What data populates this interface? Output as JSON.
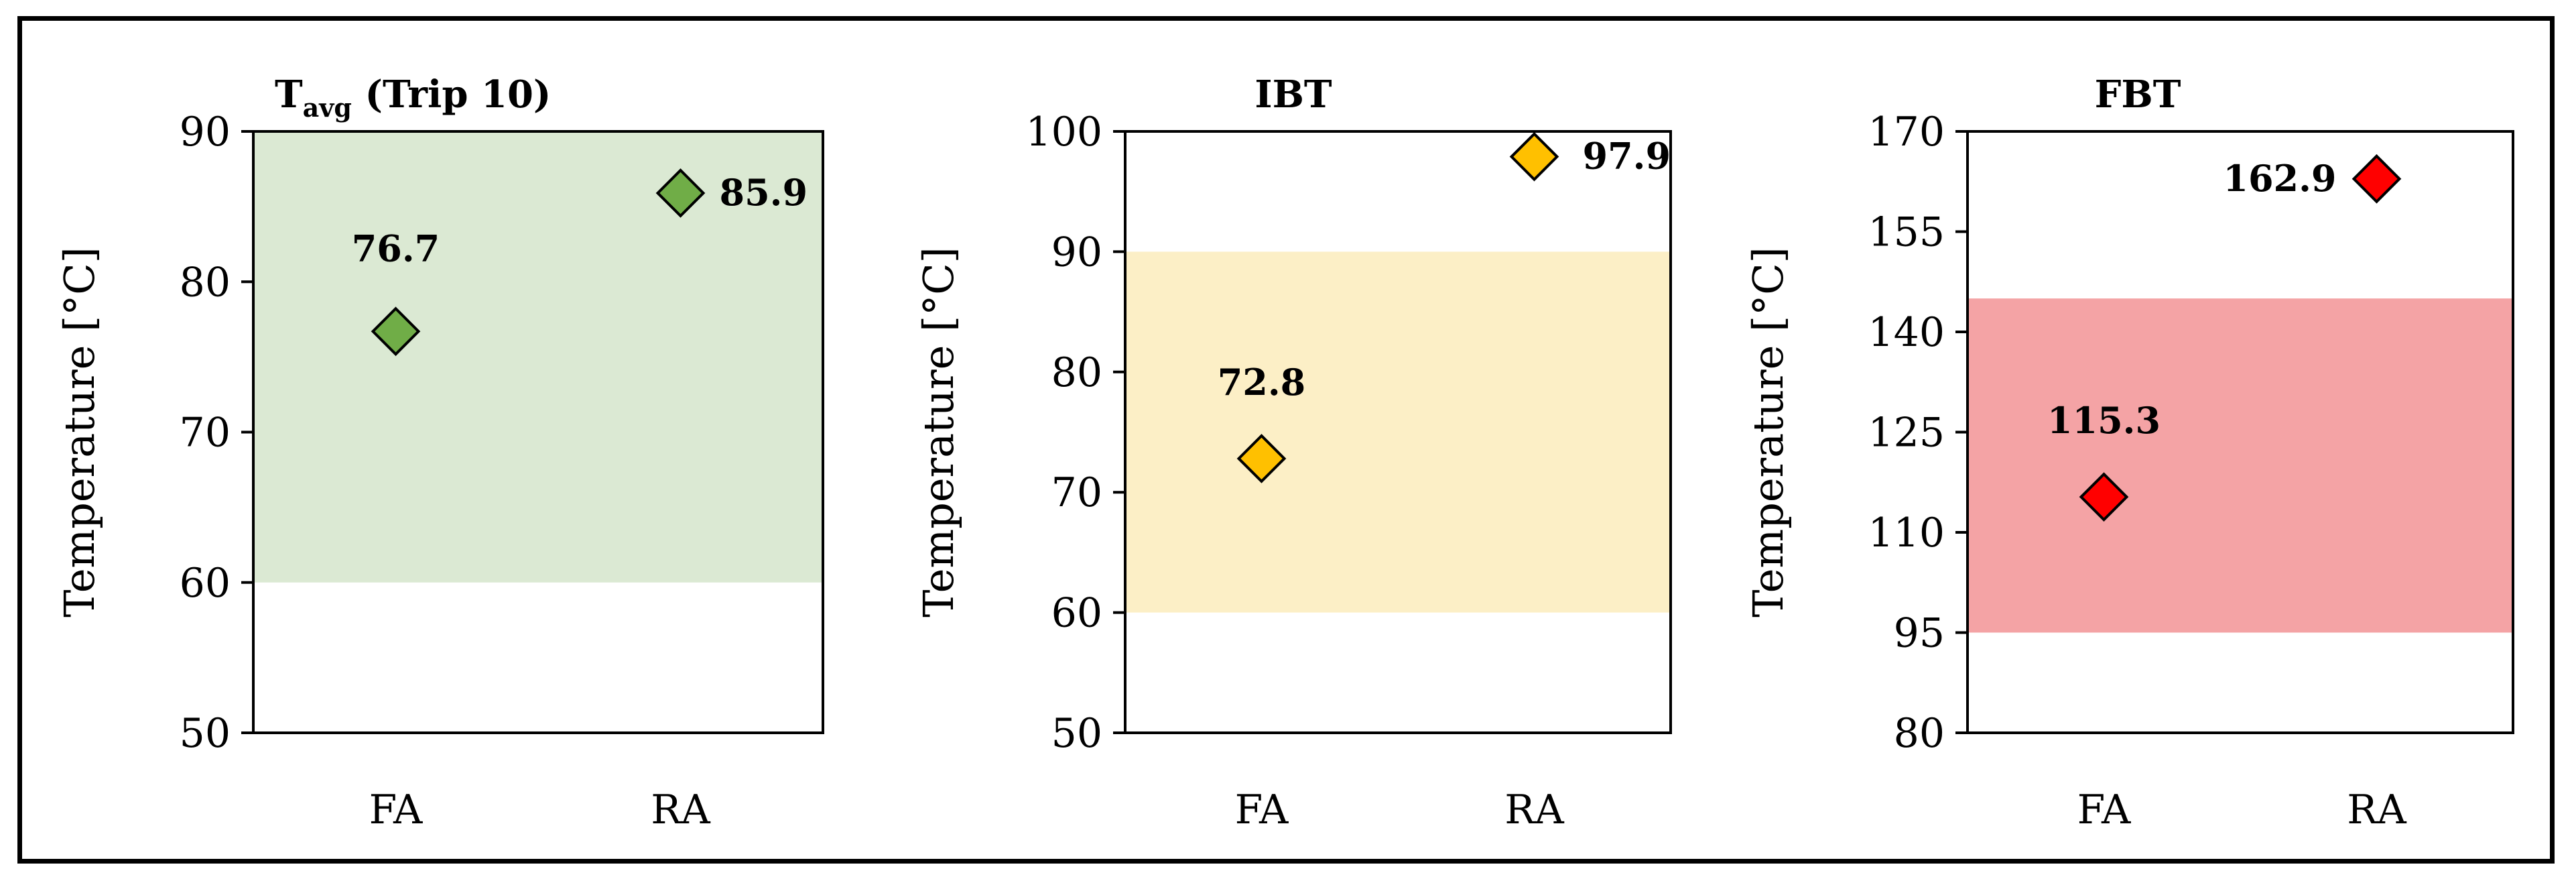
{
  "chart_data": [
    {
      "type": "scatter",
      "title": "T",
      "title_subscript": "avg",
      "title_suffix": " (Trip 10)",
      "xlabel": "",
      "ylabel": "Temperature [°C]",
      "categories": [
        "FA",
        "RA"
      ],
      "values": [
        76.7,
        85.9
      ],
      "data_labels": [
        "76.7",
        "85.9"
      ],
      "ylim": [
        50,
        90
      ],
      "yticks": [
        "50",
        "60",
        "70",
        "80",
        "90"
      ],
      "band": [
        60,
        90
      ],
      "band_color": "#dbe9d3",
      "marker_color": "#70ad47",
      "marker": "diamond",
      "grid": false
    },
    {
      "type": "scatter",
      "title": "IBT",
      "xlabel": "",
      "ylabel": "Temperature [°C]",
      "categories": [
        "FA",
        "RA"
      ],
      "values": [
        72.8,
        97.9
      ],
      "data_labels": [
        "72.8",
        "97.9"
      ],
      "ylim": [
        50,
        100
      ],
      "yticks": [
        "50",
        "60",
        "70",
        "80",
        "90",
        "100"
      ],
      "band": [
        60,
        90
      ],
      "band_color": "#fcefc6",
      "marker_color": "#ffc000",
      "marker": "diamond",
      "grid": false
    },
    {
      "type": "scatter",
      "title": "FBT",
      "xlabel": "",
      "ylabel": "Temperature [°C]",
      "categories": [
        "FA",
        "RA"
      ],
      "values": [
        115.3,
        162.9
      ],
      "data_labels": [
        "115.3",
        "162.9"
      ],
      "ylim": [
        80,
        170
      ],
      "yticks": [
        "80",
        "95",
        "110",
        "125",
        "140",
        "155",
        "170"
      ],
      "band": [
        95,
        145
      ],
      "band_color": "#f4a3a5",
      "marker_color": "#ff0000",
      "marker": "diamond",
      "grid": false
    }
  ]
}
